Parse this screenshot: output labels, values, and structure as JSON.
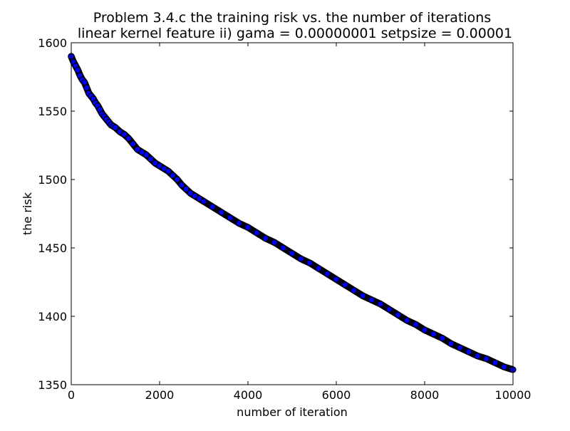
{
  "chart_data": {
    "type": "scatter",
    "title": "Problem 3.4.c the training risk vs. the number of iterations",
    "subtitle": "linear kernel feature ii) gama = 0.00000001 setpsize = 0.00001",
    "xlabel": "number of iteration",
    "ylabel": "the risk",
    "xlim": [
      0,
      10000
    ],
    "ylim": [
      1350,
      1600
    ],
    "xticks": [
      0,
      2000,
      4000,
      6000,
      8000,
      10000
    ],
    "yticks": [
      1350,
      1400,
      1450,
      1500,
      1550,
      1600
    ],
    "grid": false,
    "colors": {
      "edge": "#000000",
      "fill": "#0000ff",
      "background": "#ffffff"
    },
    "series": [
      {
        "x": [
          0,
          50,
          100,
          150,
          200,
          250,
          300,
          350,
          400,
          450,
          500,
          550,
          600,
          650,
          700,
          750,
          800,
          850,
          900,
          950,
          1000,
          1100,
          1200,
          1300,
          1400,
          1500,
          1600,
          1700,
          1800,
          1900,
          2000,
          2100,
          2200,
          2300,
          2400,
          2500,
          2600,
          2700,
          2800,
          2900,
          3000,
          3200,
          3400,
          3600,
          3800,
          4000,
          4200,
          4400,
          4600,
          4800,
          5000,
          5200,
          5400,
          5600,
          5800,
          6000,
          6200,
          6400,
          6600,
          6800,
          7000,
          7200,
          7400,
          7600,
          7800,
          8000,
          8200,
          8400,
          8600,
          8800,
          9000,
          9200,
          9400,
          9600,
          9800,
          10000
        ],
        "y": [
          1590,
          1586,
          1583,
          1580,
          1576,
          1573,
          1571,
          1567,
          1563,
          1561,
          1559,
          1556,
          1554,
          1551,
          1548,
          1546,
          1544,
          1542,
          1540,
          1539,
          1538,
          1535,
          1533,
          1530,
          1526,
          1522,
          1520,
          1518,
          1515,
          1512,
          1510,
          1508,
          1506,
          1503,
          1500,
          1496,
          1493,
          1490,
          1488,
          1486,
          1484,
          1480,
          1476,
          1472,
          1468,
          1465,
          1461,
          1457,
          1454,
          1450,
          1446,
          1442,
          1439,
          1435,
          1431,
          1427,
          1423,
          1419,
          1415,
          1412,
          1409,
          1405,
          1401,
          1397,
          1394,
          1390,
          1387,
          1384,
          1380,
          1377,
          1374,
          1371,
          1369,
          1366,
          1363,
          1361
        ]
      }
    ]
  }
}
